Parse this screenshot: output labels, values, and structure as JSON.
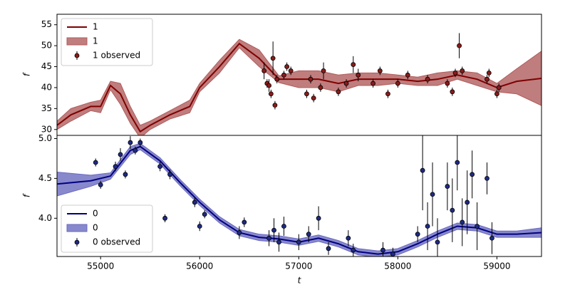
{
  "chart_data": [
    {
      "type": "band-line",
      "ylabel": "f",
      "xlim": [
        54560,
        59450
      ],
      "ylim": [
        28.6,
        57.5
      ],
      "yticks": [
        30,
        35,
        40,
        45,
        50,
        55
      ],
      "legend": "upper left",
      "x": [
        54560,
        54700,
        54900,
        55000,
        55100,
        55200,
        55300,
        55400,
        55500,
        55700,
        55900,
        56000,
        56200,
        56400,
        56600,
        56800,
        57000,
        57200,
        57400,
        57600,
        57800,
        58000,
        58200,
        58400,
        58600,
        58800,
        59000,
        59200,
        59450
      ],
      "series": [
        {
          "name": "1",
          "kind": "line",
          "color": "#7f0000",
          "values": [
            31,
            33.5,
            35.5,
            35.5,
            40.5,
            38.5,
            33.5,
            29.5,
            31,
            33.5,
            35.5,
            40,
            45,
            50.5,
            47,
            42,
            42,
            42,
            41,
            42,
            42,
            42,
            41.5,
            42,
            43,
            42,
            40,
            41.5,
            42.2
          ]
        },
        {
          "name": "1",
          "kind": "band",
          "color": "#b05c5c",
          "lower": [
            30,
            32,
            34.5,
            34,
            39.5,
            36,
            31.5,
            28,
            30,
            32.5,
            34,
            39,
            43.5,
            49.5,
            45,
            41.2,
            40,
            40,
            39,
            40.5,
            40.5,
            41,
            40.5,
            40.5,
            42,
            40.5,
            39,
            38.5,
            35.7
          ],
          "upper": [
            32,
            35,
            36.5,
            37,
            41.5,
            41,
            35.5,
            31,
            32,
            34.5,
            37,
            41,
            46.5,
            51.5,
            49,
            42.8,
            44,
            44,
            43,
            43.5,
            43.5,
            43,
            42.5,
            43.5,
            44,
            43.5,
            41,
            44.5,
            48.7
          ]
        },
        {
          "name": "1 observed",
          "kind": "points",
          "color": "#8b1a1a",
          "x": [
            56650,
            56680,
            56700,
            56720,
            56740,
            56760,
            56780,
            56850,
            56880,
            56920,
            57080,
            57120,
            57150,
            57220,
            57250,
            57400,
            57480,
            57550,
            57600,
            57750,
            57820,
            57900,
            58000,
            58100,
            58300,
            58500,
            58550,
            58580,
            58620,
            58650,
            58900,
            58920,
            59000,
            59020
          ],
          "values": [
            44,
            41,
            40.5,
            38.5,
            47,
            35.8,
            42,
            43,
            45,
            44,
            38.5,
            42,
            37.5,
            40,
            44,
            39,
            41,
            45.5,
            43,
            41,
            44,
            38.5,
            41,
            43,
            42,
            41,
            39,
            43.5,
            50,
            44,
            42,
            43.5,
            38.5,
            40
          ],
          "errors": [
            2,
            1,
            1.5,
            1,
            4,
            1,
            1,
            1,
            1,
            1,
            1,
            1,
            1,
            1,
            2,
            1,
            1,
            2,
            1.5,
            1,
            1,
            1,
            1,
            1,
            1,
            1,
            1,
            1,
            3,
            1,
            1,
            1,
            1,
            1
          ]
        }
      ]
    },
    {
      "type": "band-line",
      "ylabel": "f",
      "xlabel": "t",
      "xlim": [
        54560,
        59450
      ],
      "ylim": [
        3.52,
        5.04
      ],
      "xticks": [
        55000,
        56000,
        57000,
        58000,
        59000
      ],
      "yticks": [
        {
          "value": 4,
          "label": "4.0"
        },
        4.5,
        {
          "value": 5,
          "label": "5.0"
        }
      ],
      "legend": "lower left",
      "x": [
        54560,
        54900,
        55100,
        55300,
        55400,
        55600,
        55800,
        56000,
        56200,
        56400,
        56600,
        56800,
        57000,
        57200,
        57400,
        57600,
        57800,
        58000,
        58200,
        58400,
        58600,
        58800,
        59000,
        59200,
        59450
      ],
      "series": [
        {
          "name": "0",
          "kind": "line",
          "color": "#000080",
          "values": [
            4.43,
            4.47,
            4.53,
            4.85,
            4.9,
            4.72,
            4.45,
            4.2,
            3.98,
            3.82,
            3.76,
            3.74,
            3.7,
            3.75,
            3.68,
            3.58,
            3.55,
            3.58,
            3.68,
            3.8,
            3.9,
            3.88,
            3.8,
            3.8,
            3.82
          ]
        },
        {
          "name": "0",
          "kind": "band",
          "color": "#6a6ac0",
          "lower": [
            4.28,
            4.4,
            4.49,
            4.8,
            4.86,
            4.68,
            4.41,
            4.16,
            3.94,
            3.78,
            3.72,
            3.7,
            3.66,
            3.71,
            3.64,
            3.54,
            3.51,
            3.54,
            3.64,
            3.76,
            3.86,
            3.84,
            3.76,
            3.76,
            3.76
          ],
          "upper": [
            4.58,
            4.54,
            4.57,
            4.9,
            4.94,
            4.76,
            4.49,
            4.24,
            4.02,
            3.86,
            3.8,
            3.78,
            3.74,
            3.79,
            3.72,
            3.62,
            3.59,
            3.62,
            3.72,
            3.84,
            3.94,
            3.92,
            3.84,
            3.84,
            3.88
          ]
        },
        {
          "name": "0 observed",
          "kind": "points",
          "color": "#1c2a8a",
          "x": [
            54950,
            55000,
            55150,
            55200,
            55250,
            55300,
            55350,
            55400,
            55600,
            55650,
            55700,
            55950,
            56000,
            56050,
            56400,
            56450,
            56700,
            56750,
            56800,
            56850,
            57000,
            57100,
            57200,
            57300,
            57500,
            57550,
            57850,
            57950,
            58200,
            58250,
            58300,
            58350,
            58400,
            58500,
            58550,
            58600,
            58650,
            58700,
            58750,
            58800,
            58900,
            58950
          ],
          "values": [
            4.7,
            4.42,
            4.65,
            4.8,
            4.55,
            4.95,
            4.85,
            4.95,
            4.65,
            4.0,
            4.55,
            4.2,
            3.9,
            4.05,
            3.82,
            3.95,
            3.75,
            3.85,
            3.7,
            3.9,
            3.7,
            3.8,
            4.0,
            3.62,
            3.75,
            3.6,
            3.6,
            3.55,
            3.8,
            4.6,
            3.9,
            4.3,
            3.7,
            4.4,
            4.1,
            4.7,
            3.95,
            4.2,
            4.55,
            3.9,
            4.5,
            3.75
          ],
          "errors": [
            0.05,
            0.05,
            0.06,
            0.08,
            0.05,
            0.08,
            0.05,
            0.05,
            0.06,
            0.05,
            0.06,
            0.06,
            0.06,
            0.05,
            0.08,
            0.06,
            0.1,
            0.15,
            0.12,
            0.12,
            0.1,
            0.1,
            0.15,
            0.08,
            0.1,
            0.08,
            0.1,
            0.08,
            0.1,
            0.5,
            0.3,
            0.4,
            0.3,
            0.3,
            0.4,
            0.35,
            0.3,
            0.4,
            0.3,
            0.3,
            0.2,
            0.2
          ]
        }
      ]
    }
  ]
}
